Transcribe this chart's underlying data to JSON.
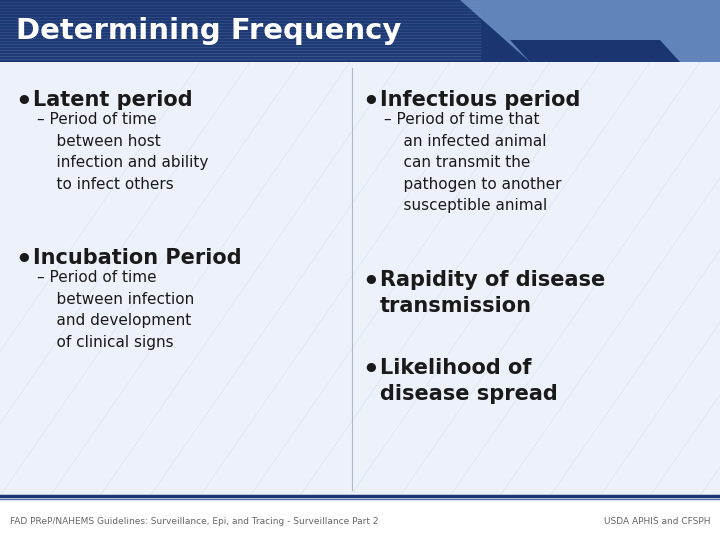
{
  "title": "Determining Frequency",
  "title_color": "#FFFFFF",
  "title_bg_dark": "#1a3570",
  "title_bg_light": "#7a9fd4",
  "bg_color": "#ffffff",
  "content_bg": "#edf2fa",
  "footer_left": "FAD PReP/NAHEMS Guidelines: Surveillance, Epi, and Tracing - Surveillance Part 2",
  "footer_right": "USDA APHIS and CFSPH",
  "footer_color": "#666666",
  "footer_line_color": "#1a3570",
  "left_col": {
    "bullet1_text": "Latent period",
    "bullet1_sub": "– Period of time\n    between host\n    infection and ability\n    to infect others",
    "bullet2_text": "Incubation Period",
    "bullet2_sub": "– Period of time\n    between infection\n    and development\n    of clinical signs"
  },
  "right_col": {
    "bullet1_text": "Infectious period",
    "bullet1_sub": "– Period of time that\n    an infected animal\n    can transmit the\n    pathogen to another\n    susceptible animal",
    "bullet2_text": "Rapidity of disease\ntransmission",
    "bullet3_text": "Likelihood of\ndisease spread"
  },
  "text_color": "#1a1a1a",
  "divider_color": "#b0b8cc",
  "stripe_color": "#5572a8"
}
